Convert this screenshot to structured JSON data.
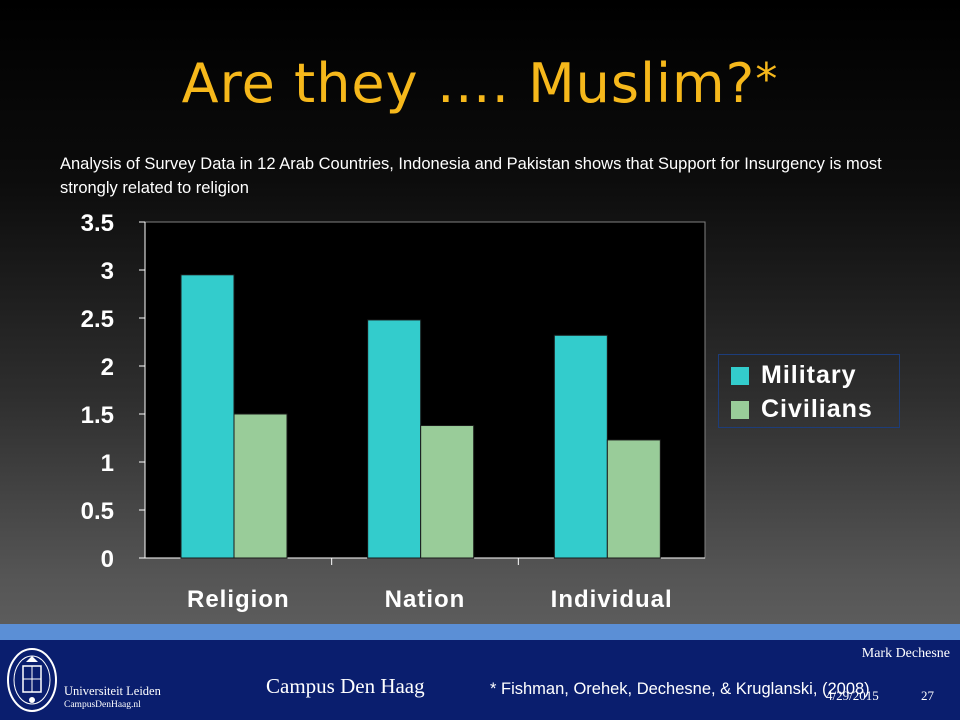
{
  "slide": {
    "title": "Are they …. Muslim?",
    "title_mark": "*",
    "subtitle": "Analysis of Survey Data in 12 Arab Countries, Indonesia and Pakistan shows that Support for Insurgency is most strongly related to religion"
  },
  "chart_data": {
    "type": "bar",
    "title": "",
    "xlabel": "",
    "ylabel": "",
    "categories": [
      "Religion",
      "Nation",
      "Individual"
    ],
    "series": [
      {
        "name": "Military",
        "values": [
          2.95,
          2.48,
          2.32
        ],
        "color": "#33cccc"
      },
      {
        "name": "Civilians",
        "values": [
          1.5,
          1.38,
          1.23
        ],
        "color": "#99cc99"
      }
    ],
    "ylim": [
      0,
      3.5
    ],
    "yticks": [
      "0",
      "0.5",
      "1",
      "1.5",
      "2",
      "2.5",
      "3",
      "3.5"
    ],
    "legend_position": "right",
    "grid": false,
    "plot_background": "#000000",
    "axis_color": "#ffffff"
  },
  "footer": {
    "university": "Universiteit Leiden",
    "url": "CampusDenHaag.nl",
    "campus": "Campus Den Haag",
    "author": "Mark Dechesne",
    "date": "4/29/2015",
    "page": "27",
    "citation": "* Fishman, Orehek, Dechesne, & Kruglanski, (2008)",
    "colors": {
      "band": "#0a1e6e",
      "stripe": "#5b8fd6"
    }
  }
}
